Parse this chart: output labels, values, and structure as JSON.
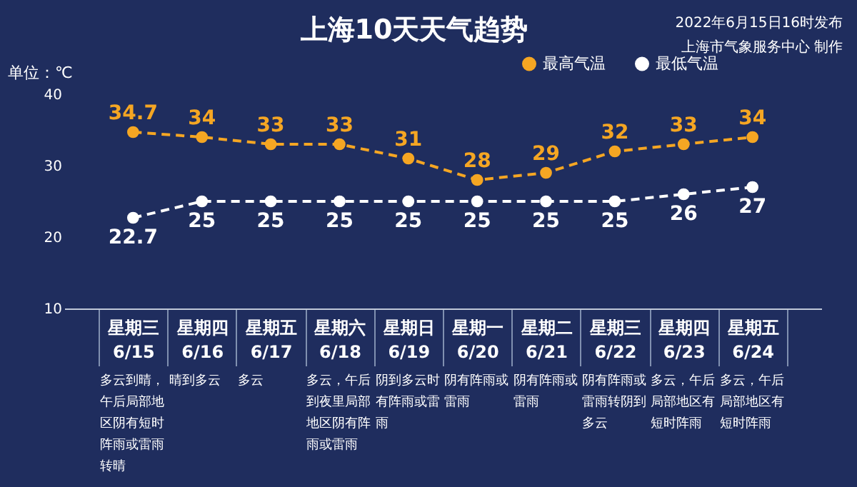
{
  "chart_data": {
    "type": "line",
    "title": "上海10天天气趋势",
    "ylabel": "单位：℃",
    "categories": [
      "星期三 6/15",
      "星期四 6/16",
      "星期五 6/17",
      "星期六 6/18",
      "星期日 6/19",
      "星期一 6/20",
      "星期二 6/21",
      "星期三 6/22",
      "星期四 6/23",
      "星期五 6/24"
    ],
    "series": [
      {
        "name": "最高气温",
        "color": "#f5a623",
        "values": [
          34.7,
          34,
          33,
          33,
          31,
          28,
          29,
          32,
          33,
          34
        ]
      },
      {
        "name": "最低气温",
        "color": "#ffffff",
        "values": [
          22.7,
          25,
          25,
          25,
          25,
          25,
          25,
          25,
          26,
          27
        ]
      }
    ],
    "ylim": [
      10,
      40
    ],
    "yticks": [
      10,
      20,
      30,
      40
    ],
    "grid": false,
    "legend": "top right",
    "marker": "circle",
    "line_style": "dashed",
    "data_labels": true,
    "annotations": [
      "2022年6月15日16时发布",
      "上海市气象服务中心 制作",
      "多云到晴，午后局部地区阴有短时阵雨或雷雨转晴",
      "晴到多云",
      "多云",
      "多云，午后到夜里局部地区阴有阵雨或雷雨",
      "阴到多云时有阵雨或雷雨",
      "阴有阵雨或雷雨",
      "阴有阵雨或雷雨",
      "阴有阵雨或雷雨转阴到多云",
      "多云，午后局部地区有短时阵雨",
      "多云，午后局部地区有短时阵雨"
    ]
  }
}
